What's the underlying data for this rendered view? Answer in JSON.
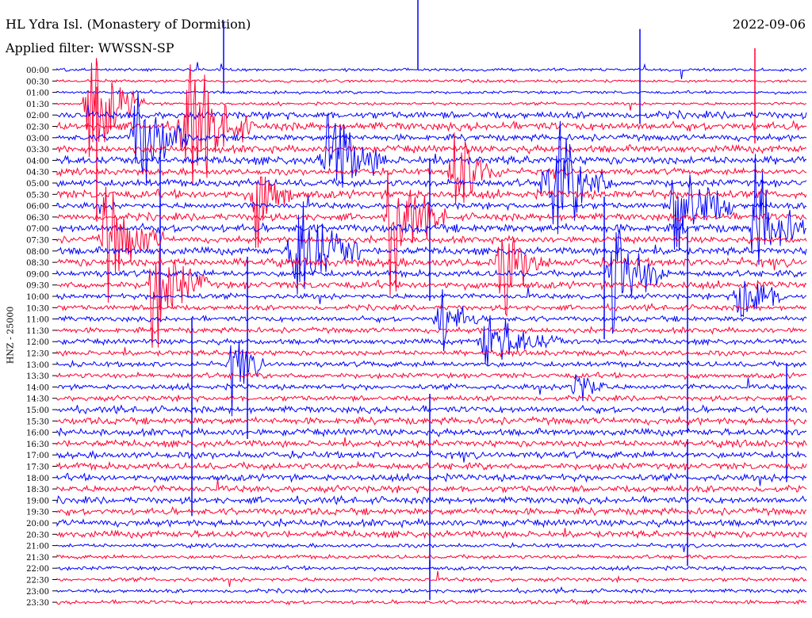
{
  "header": {
    "station_title": "HL Ydra Isl. (Monastery of Dormition)",
    "filter_label": "Applied filter: WWSSN-SP",
    "date": "2022-09-06"
  },
  "chart_data": {
    "type": "helicorder",
    "title": "HL Ydra Isl. (Monastery of Dormition)",
    "subtitle": "Applied filter: WWSSN-SP",
    "date": "2022-09-06",
    "ylabel": "HNZ - 25000",
    "colors": [
      "#0000ff",
      "#ff0033"
    ],
    "row_labels": [
      "00:00",
      "00:30",
      "01:00",
      "01:30",
      "02:00",
      "02:30",
      "03:00",
      "03:30",
      "04:00",
      "04:30",
      "05:00",
      "05:30",
      "06:00",
      "06:30",
      "07:00",
      "07:30",
      "08:00",
      "08:30",
      "09:00",
      "09:30",
      "10:00",
      "10:30",
      "11:00",
      "11:30",
      "12:00",
      "12:30",
      "13:00",
      "13:30",
      "14:00",
      "14:30",
      "15:00",
      "15:30",
      "16:00",
      "16:30",
      "17:00",
      "17:30",
      "18:00",
      "18:30",
      "19:00",
      "19:30",
      "20:00",
      "20:30",
      "21:00",
      "21:30",
      "22:00",
      "22:30",
      "23:00",
      "23:30"
    ]
  }
}
